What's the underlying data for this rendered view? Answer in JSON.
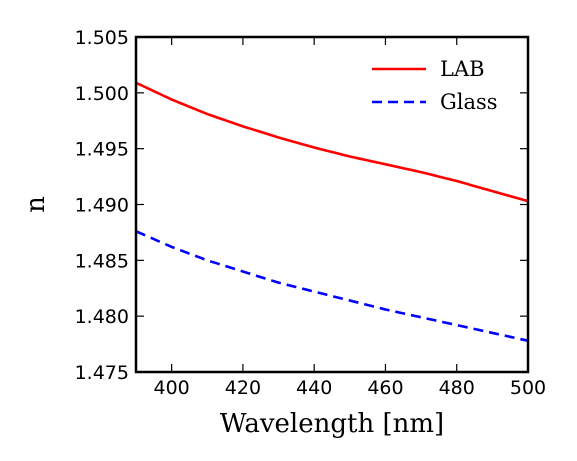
{
  "chart_data": {
    "type": "line",
    "title": "",
    "xlabel": "Wavelength [nm]",
    "ylabel": "n",
    "xlim": [
      390,
      500
    ],
    "ylim": [
      1.475,
      1.505
    ],
    "xticks": [
      "400",
      "420",
      "440",
      "460",
      "480",
      "500"
    ],
    "yticks": [
      "1.475",
      "1.480",
      "1.485",
      "1.490",
      "1.495",
      "1.500",
      "1.505"
    ],
    "grid": false,
    "legend": "top-right",
    "x": [
      390,
      400,
      410,
      420,
      430,
      440,
      450,
      460,
      470,
      480,
      490,
      500
    ],
    "series": [
      {
        "name": "LAB",
        "color": "#ff0000",
        "style": "solid",
        "values": [
          1.5009,
          1.4994,
          1.4981,
          1.497,
          1.496,
          1.4951,
          1.4943,
          1.4936,
          1.4929,
          1.4921,
          1.4912,
          1.4903
        ]
      },
      {
        "name": "Glass",
        "color": "#0000ff",
        "style": "dashed",
        "values": [
          1.4876,
          1.4862,
          1.485,
          1.484,
          1.483,
          1.4822,
          1.4814,
          1.4806,
          1.4799,
          1.4792,
          1.4785,
          1.4778
        ]
      }
    ]
  }
}
